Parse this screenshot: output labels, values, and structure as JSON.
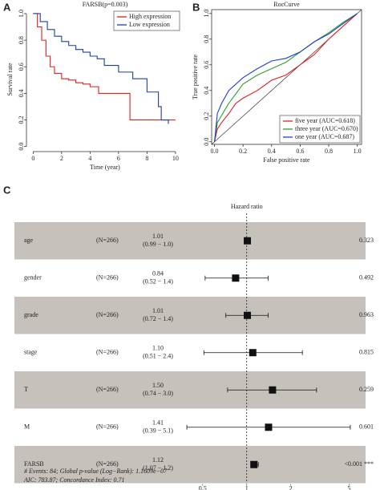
{
  "panels": [
    "A",
    "B",
    "C"
  ],
  "chart_data": [
    {
      "type": "line",
      "step": true,
      "title": "FARSB(p=0.003)",
      "x_label": "Time (year)",
      "y_label": "Survival rate",
      "xlim": [
        -0.3,
        10.4
      ],
      "ylim": [
        -0.02,
        1.03
      ],
      "xticks": [
        0,
        2,
        4,
        6,
        8,
        10
      ],
      "yticks": [
        {
          "value": 0,
          "label": "0.0"
        },
        0.2,
        0.4,
        0.6,
        0.8,
        {
          "value": 1,
          "label": "1.0"
        }
      ],
      "legend": "top-right",
      "series": [
        {
          "name": "High expression",
          "color": "#e0201b",
          "x": [
            0,
            0.3,
            0.6,
            0.9,
            1.2,
            1.5,
            2.0,
            2.5,
            3.0,
            3.5,
            4.0,
            4.6,
            5.5,
            6.8,
            7.5,
            10.0
          ],
          "values": [
            1.0,
            0.9,
            0.8,
            0.68,
            0.6,
            0.55,
            0.51,
            0.5,
            0.48,
            0.47,
            0.45,
            0.4,
            0.4,
            0.2,
            0.2,
            0.2
          ]
        },
        {
          "name": "Low expression",
          "color": "#1f3f9a",
          "x": [
            0,
            0.5,
            1.0,
            1.5,
            2.0,
            2.5,
            3.0,
            3.5,
            4.0,
            4.5,
            5.0,
            6.0,
            7.0,
            8.0,
            8.8,
            9.0,
            9.5
          ],
          "values": [
            1.0,
            0.94,
            0.88,
            0.83,
            0.79,
            0.76,
            0.73,
            0.71,
            0.68,
            0.66,
            0.61,
            0.56,
            0.51,
            0.41,
            0.3,
            0.2,
            0.17
          ]
        }
      ]
    },
    {
      "type": "line",
      "step": false,
      "title": "RocCurve",
      "x_label": "False positive rate",
      "y_label": "True positive rate",
      "xlim": [
        -0.02,
        1.03
      ],
      "ylim": [
        -0.02,
        1.03
      ],
      "xticks": [
        {
          "value": 0,
          "label": "0.0"
        },
        0.2,
        0.4,
        0.6,
        0.8,
        {
          "value": 1,
          "label": "1.0"
        }
      ],
      "yticks": [
        {
          "value": 0,
          "label": "0.0"
        },
        0.2,
        0.4,
        0.6,
        0.8,
        {
          "value": 1,
          "label": "1.0"
        }
      ],
      "diagonal": true,
      "legend": "bottom-right",
      "series": [
        {
          "name": "five year (AUC=0.618)",
          "color": "#e0201b",
          "x": [
            0,
            0.02,
            0.05,
            0.1,
            0.15,
            0.2,
            0.3,
            0.4,
            0.5,
            0.6,
            0.7,
            0.8,
            0.9,
            1.0
          ],
          "values": [
            0,
            0.1,
            0.15,
            0.22,
            0.3,
            0.34,
            0.4,
            0.48,
            0.52,
            0.6,
            0.68,
            0.8,
            0.9,
            1.0
          ]
        },
        {
          "name": "three year (AUC=0.670)",
          "color": "#2ca02c",
          "x": [
            0,
            0.02,
            0.1,
            0.2,
            0.3,
            0.4,
            0.5,
            0.6,
            0.7,
            0.8,
            0.9,
            1.0
          ],
          "values": [
            0,
            0.15,
            0.3,
            0.45,
            0.52,
            0.57,
            0.62,
            0.7,
            0.78,
            0.85,
            0.93,
            1.0
          ]
        },
        {
          "name": "one year (AUC=0.687)",
          "color": "#1f3fd0",
          "x": [
            0,
            0.02,
            0.05,
            0.1,
            0.2,
            0.3,
            0.4,
            0.5,
            0.6,
            0.7,
            0.8,
            0.9,
            1.0
          ],
          "values": [
            0,
            0.22,
            0.3,
            0.4,
            0.5,
            0.57,
            0.63,
            0.65,
            0.7,
            0.78,
            0.84,
            0.92,
            1.0
          ]
        }
      ]
    },
    {
      "type": "forest",
      "title": "Hazard ratio",
      "categories": [
        "age",
        "gender",
        "grade",
        "stage",
        "T",
        "M",
        "FARSB"
      ],
      "n_labels": [
        "(N=266)",
        "(N=266)",
        "(N=266)",
        "(N=266)",
        "(N=266)",
        "(N=266)",
        "(N=266)"
      ],
      "values": [
        1.01,
        0.84,
        1.01,
        1.1,
        1.5,
        1.41,
        1.12
      ],
      "value_labels": [
        "1.01",
        "0.84",
        "1.01",
        "1.10",
        "1.50",
        "1.41",
        "1.12"
      ],
      "lower": [
        0.99,
        0.52,
        0.72,
        0.51,
        0.74,
        0.39,
        1.07
      ],
      "upper": [
        1.0,
        1.4,
        1.4,
        2.4,
        3.0,
        5.1,
        1.2
      ],
      "ci_labels": [
        "(0.99 − 1.0)",
        "(0.52 − 1.4)",
        "(0.72 − 1.4)",
        "(0.51 − 2.4)",
        "(0.74 − 3.0)",
        "(0.39 − 5.1)",
        "(1.07 − 1.2)"
      ],
      "p_labels": [
        "0.323",
        "0.492",
        "0.963",
        "0.815",
        "0.259",
        "0.601",
        "<0.001 ***"
      ],
      "xlim": [
        0.38,
        5.3
      ],
      "xticks": [
        0.5,
        1,
        2,
        5
      ],
      "log_x": true,
      "reference": 1,
      "shading": "#c6c1bb",
      "footnotes": [
        "# Events: 84; Global p-value (Log−Rank): 1.1609e−07",
        "AIC: 783.87; Concordance Index: 0.71"
      ]
    }
  ]
}
